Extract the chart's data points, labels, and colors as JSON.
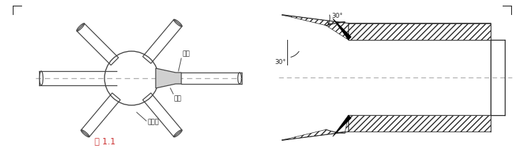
{
  "bg_color": "#ffffff",
  "line_color": "#444444",
  "dark_color": "#222222",
  "dash_color": "#aaaaaa",
  "red_color": "#cc3333",
  "fig_label": "图 1.1",
  "label_konxinqiu": "空心球",
  "label_gangguan": "钢管",
  "label_taoguan": "套管",
  "angle_label_top": "30°",
  "angle_label_left": "30°"
}
